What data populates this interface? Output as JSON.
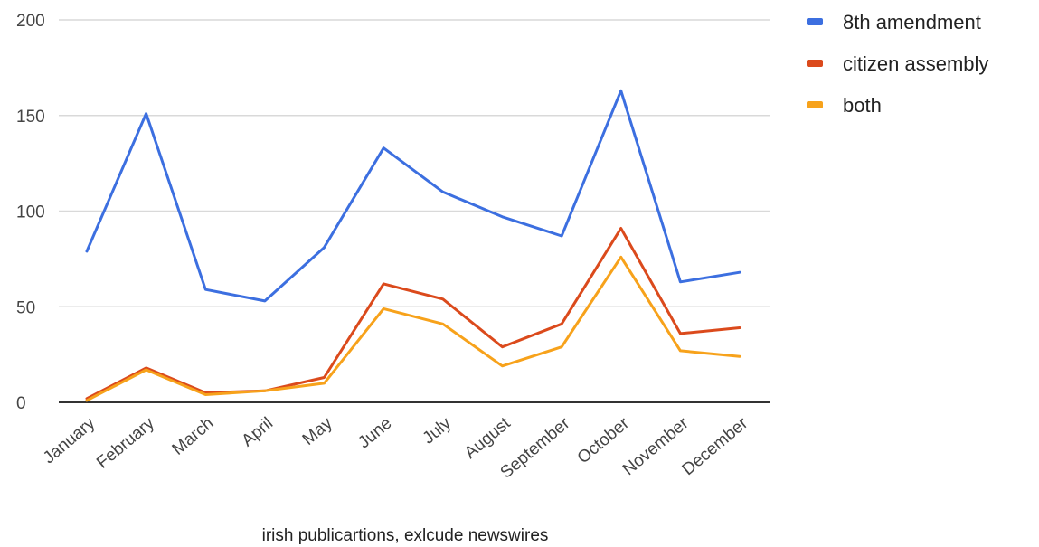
{
  "chart_data": {
    "type": "line",
    "title": "",
    "xlabel": "irish publicartions, exlcude newswires",
    "ylabel": "",
    "ylim": [
      0,
      200
    ],
    "yticks": [
      "0",
      "50",
      "100",
      "150",
      "200"
    ],
    "grid": true,
    "legend_position": "top-right",
    "categories": [
      "January",
      "February",
      "March",
      "April",
      "May",
      "June",
      "July",
      "August",
      "September",
      "October",
      "November",
      "December"
    ],
    "series": [
      {
        "name": "8th amendment",
        "color": "#3c6fe0",
        "values": [
          79,
          151,
          59,
          53,
          81,
          133,
          110,
          97,
          87,
          163,
          63,
          68
        ]
      },
      {
        "name": "citizen assembly",
        "color": "#db4a1c",
        "values": [
          2,
          18,
          5,
          6,
          13,
          62,
          54,
          29,
          41,
          91,
          36,
          39
        ]
      },
      {
        "name": "both",
        "color": "#f7a21b",
        "values": [
          1,
          17,
          4,
          6,
          10,
          49,
          41,
          19,
          29,
          76,
          27,
          24
        ]
      }
    ]
  }
}
